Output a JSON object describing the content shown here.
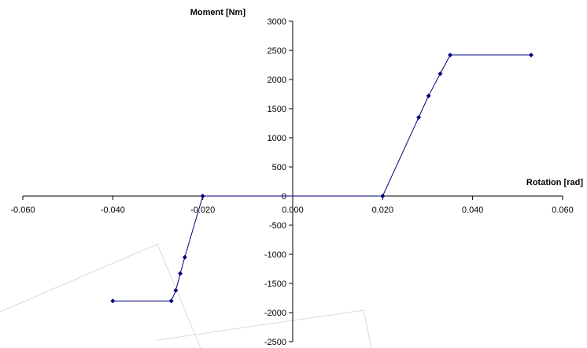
{
  "chart_data": {
    "type": "scatter",
    "title": "",
    "xlabel": "Rotation [rad]",
    "ylabel": "Moment [Nm]",
    "xlim": [
      -0.06,
      0.06
    ],
    "ylim": [
      -2500,
      3000
    ],
    "x_ticks": [
      "-0.060",
      "-0.040",
      "-0.020",
      "0.000",
      "0.020",
      "0.040",
      "0.060"
    ],
    "y_ticks": [
      "3000",
      "2500",
      "2000",
      "1500",
      "1000",
      "500",
      "0",
      "-500",
      "-1000",
      "-1500",
      "-2000",
      "-2500"
    ],
    "grid": false,
    "legend": "none",
    "series": [
      {
        "color": "#000080",
        "points": [
          [
            -0.04,
            -1800
          ],
          [
            -0.027,
            -1800
          ],
          [
            -0.026,
            -1620
          ],
          [
            -0.025,
            -1330
          ],
          [
            -0.024,
            -1050
          ],
          [
            -0.02,
            0
          ],
          [
            0.02,
            0
          ],
          [
            0.028,
            1350
          ],
          [
            0.0302,
            1720
          ],
          [
            0.0328,
            2100
          ],
          [
            0.035,
            2420
          ],
          [
            0.053,
            2420
          ]
        ]
      }
    ]
  }
}
